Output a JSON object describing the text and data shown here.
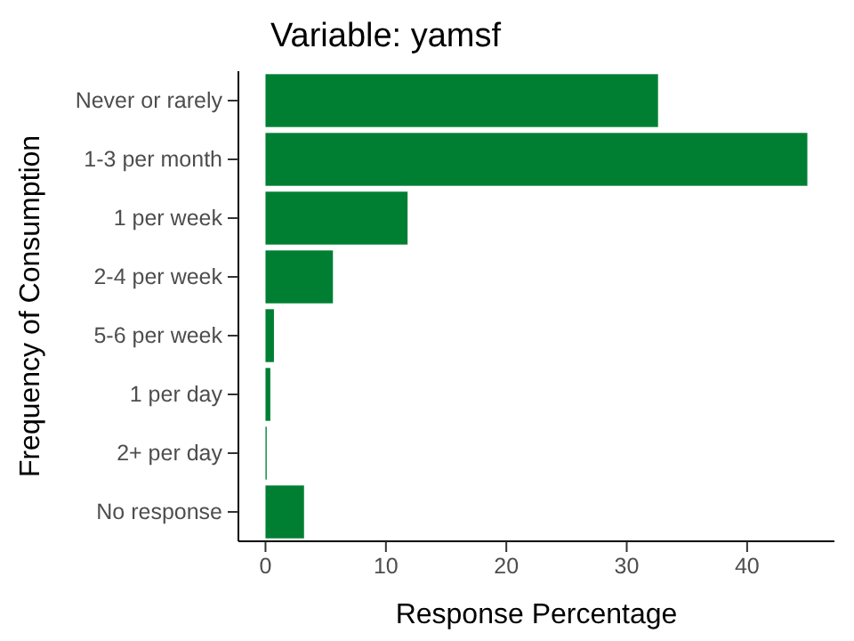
{
  "chart_data": {
    "type": "bar",
    "orientation": "horizontal",
    "title": "Variable: yamsf",
    "xlabel": "Response Percentage",
    "ylabel": "Frequency of Consumption",
    "categories": [
      "Never or rarely",
      "1-3 per month",
      "1 per week",
      "2-4 per week",
      "5-6 per week",
      "1 per day",
      "2+ per day",
      "No response"
    ],
    "values": [
      32.6,
      45.0,
      11.8,
      5.6,
      0.7,
      0.4,
      0.1,
      3.2
    ],
    "color": "#007f33",
    "xlim": [
      -2.25,
      47.25
    ],
    "xticks": [
      0,
      10,
      20,
      30,
      40
    ],
    "grid": false
  }
}
